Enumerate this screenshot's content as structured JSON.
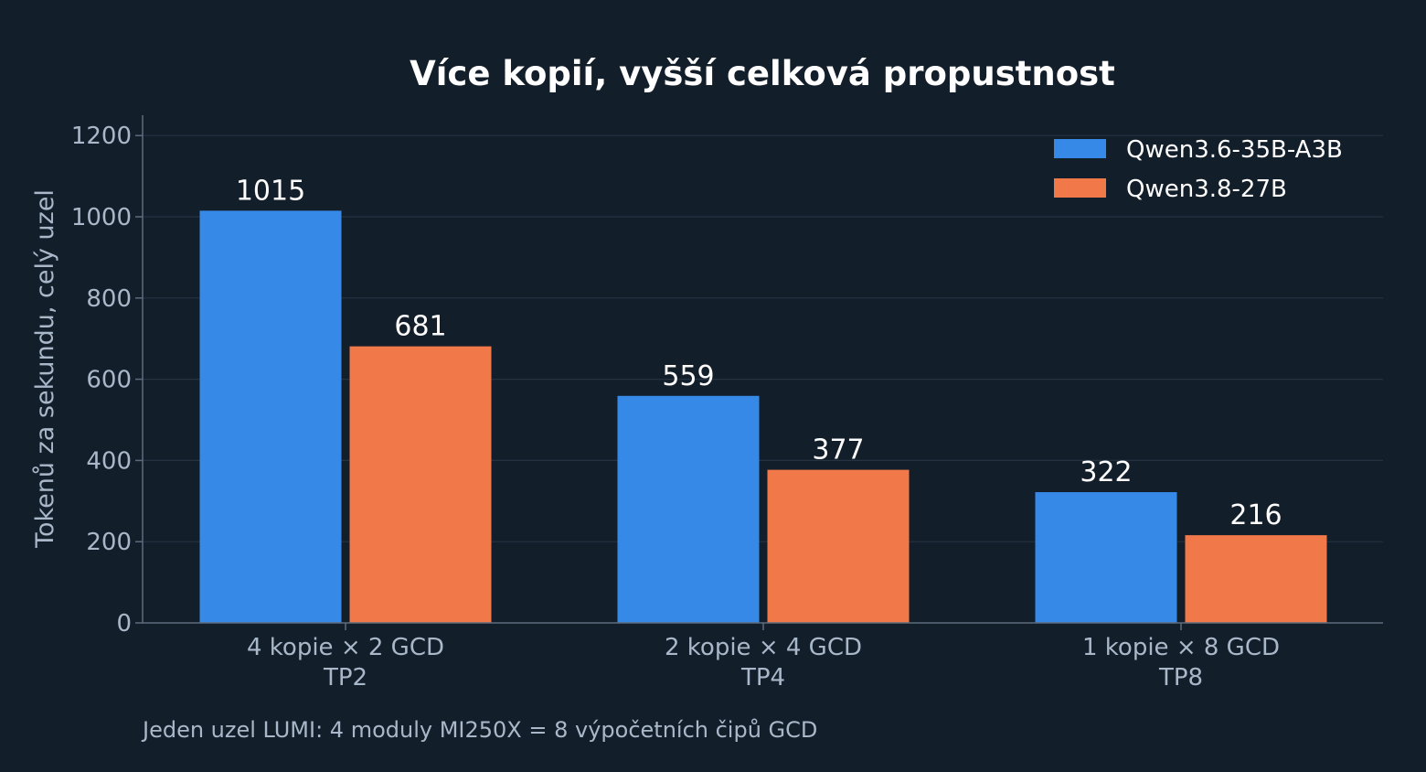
{
  "chart_data": {
    "type": "bar",
    "title": "Více kopií, vyšší celková propustnost",
    "xlabel": "",
    "ylabel": "Tokenů za sekundu, celý uzel",
    "categories": [
      [
        "4 kopie × 2 GCD",
        "TP2"
      ],
      [
        "2 kopie × 4 GCD",
        "TP4"
      ],
      [
        "1 kopie × 8 GCD",
        "TP8"
      ]
    ],
    "series": [
      {
        "name": "Qwen3.6-35B-A3B",
        "color": "#3689e6",
        "values": [
          1015,
          559,
          322
        ]
      },
      {
        "name": "Qwen3.8-27B",
        "color": "#f07849",
        "values": [
          681,
          377,
          216
        ]
      }
    ],
    "ylim": [
      0,
      1250
    ],
    "yticks": [
      0,
      200,
      400,
      600,
      800,
      1000,
      1200
    ],
    "grid": true,
    "legend_position": "top-right",
    "footnote": "Jeden uzel LUMI: 4 moduly MI250X = 8 výpočetních čipů GCD"
  },
  "colors": {
    "background": "#131e2b",
    "grid": "#263242",
    "axis": "#5d6b7c",
    "text_muted": "#a9b8c9",
    "text_bright": "#ffffff"
  }
}
